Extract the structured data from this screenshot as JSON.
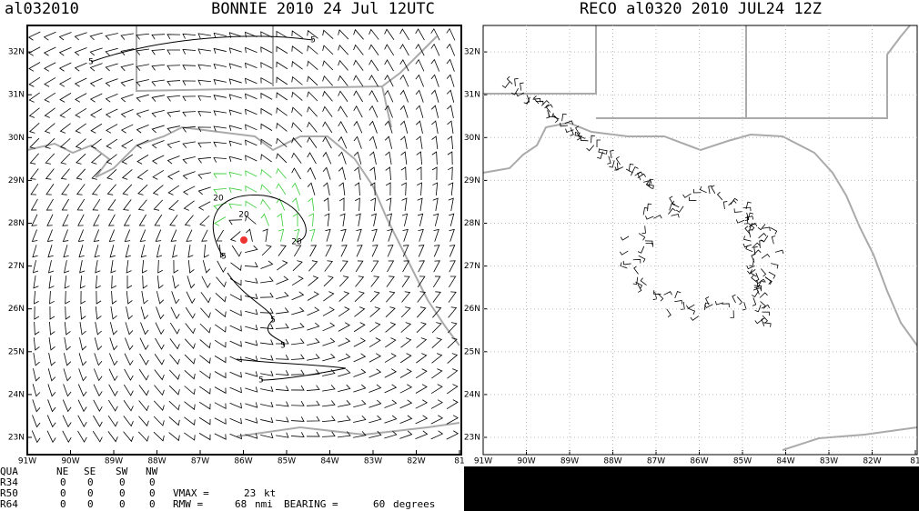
{
  "left_panel": {
    "storm_id": "al032010",
    "title": "BONNIE 2010 24 Jul 12UTC",
    "contour_labels": [
      "5",
      "5",
      "20",
      "20",
      "20",
      "5",
      "5",
      "5",
      "5"
    ]
  },
  "right_panel": {
    "title": "RECO al0320 2010 JUL24 12Z"
  },
  "axes": {
    "lon_labels": [
      "91W",
      "90W",
      "89W",
      "88W",
      "87W",
      "86W",
      "85W",
      "84W",
      "83W",
      "82W",
      "81"
    ],
    "lat_labels": [
      "23N",
      "24N",
      "25N",
      "26N",
      "27N",
      "28N",
      "29N",
      "30N",
      "31N",
      "32N"
    ]
  },
  "table": {
    "header": [
      "QUA",
      "NE",
      "SE",
      "SW",
      "NW"
    ],
    "rows": [
      [
        "R34",
        0,
        0,
        0,
        0
      ],
      [
        "R50",
        0,
        0,
        0,
        0
      ],
      [
        "R64",
        0,
        0,
        0,
        0
      ]
    ],
    "vmax_label": "VMAX =",
    "vmax_value": 23,
    "vmax_unit": "kt",
    "rmw_label": "RMW =",
    "rmw_value": 68,
    "rmw_unit": "nmi",
    "bearing_label": "BEARING =",
    "bearing_value": 60,
    "bearing_unit": "degrees"
  }
}
